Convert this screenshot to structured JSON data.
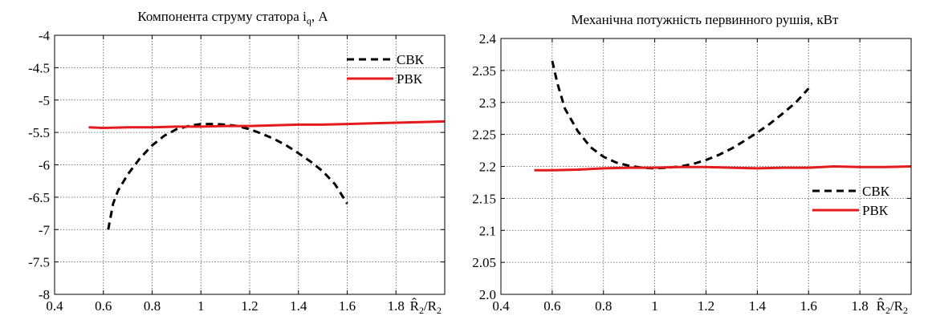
{
  "colors": {
    "svk": "#000000",
    "rvk": "#e41a1c"
  },
  "chart_data": [
    {
      "type": "line",
      "title": "Компонента струму статора i",
      "title_sub": "q",
      "title_suffix": ", А",
      "xlabel": "R̂",
      "xlabel_sub1": "2",
      "xlabel_mid": "/R",
      "xlabel_sub2": "2",
      "xlim": [
        0.4,
        2.0
      ],
      "ylim": [
        -8,
        -4
      ],
      "xticks": [
        0.4,
        0.6,
        0.8,
        1,
        1.2,
        1.4,
        1.6,
        1.8
      ],
      "xtick_labels": [
        "0.4",
        "0.6",
        "0.8",
        "1",
        "1.2",
        "1.4",
        "1.6",
        "1.8"
      ],
      "yticks": [
        -8,
        -7.5,
        -7,
        -6.5,
        -6,
        -5.5,
        -5,
        -4.5,
        -4
      ],
      "ytick_labels": [
        "-8",
        "-7.5",
        "-7",
        "-6.5",
        "-6",
        "-5.5",
        "-5",
        "-4.5",
        "-4"
      ],
      "grid": true,
      "legend_position": "top-right",
      "series": [
        {
          "name": "СВК",
          "style": "dashed",
          "x": [
            0.62,
            0.64,
            0.66,
            0.7,
            0.75,
            0.8,
            0.85,
            0.9,
            0.95,
            1.0,
            1.05,
            1.1,
            1.15,
            1.2,
            1.25,
            1.3,
            1.35,
            1.4,
            1.45,
            1.5,
            1.55,
            1.6
          ],
          "y": [
            -7.0,
            -6.6,
            -6.4,
            -6.15,
            -5.9,
            -5.7,
            -5.55,
            -5.45,
            -5.4,
            -5.37,
            -5.37,
            -5.38,
            -5.4,
            -5.45,
            -5.52,
            -5.6,
            -5.7,
            -5.82,
            -5.95,
            -6.1,
            -6.3,
            -6.6
          ]
        },
        {
          "name": "РВК",
          "style": "solid",
          "x": [
            0.54,
            0.6,
            0.7,
            0.8,
            0.9,
            1.0,
            1.1,
            1.2,
            1.3,
            1.4,
            1.5,
            1.6,
            1.7,
            1.8,
            1.9,
            2.0
          ],
          "y": [
            -5.42,
            -5.43,
            -5.42,
            -5.42,
            -5.41,
            -5.41,
            -5.4,
            -5.4,
            -5.39,
            -5.38,
            -5.38,
            -5.37,
            -5.36,
            -5.35,
            -5.34,
            -5.33
          ]
        }
      ]
    },
    {
      "type": "line",
      "title": "Механічна потужність первинного рушія, кВт",
      "xlabel": "R̂",
      "xlabel_sub1": "2",
      "xlabel_mid": "/R",
      "xlabel_sub2": "2",
      "xlim": [
        0.4,
        2.0
      ],
      "ylim": [
        2.0,
        2.4
      ],
      "xticks": [
        0.4,
        0.6,
        0.8,
        1,
        1.2,
        1.4,
        1.6,
        1.8
      ],
      "xtick_labels": [
        "0.4",
        "0.6",
        "0.8",
        "1",
        "1.2",
        "1.4",
        "1.6",
        "1.8"
      ],
      "yticks": [
        2.0,
        2.05,
        2.1,
        2.15,
        2.2,
        2.25,
        2.3,
        2.35,
        2.4
      ],
      "ytick_labels": [
        "2.0",
        "2.05",
        "2.1",
        "2.15",
        "2.2",
        "2.25",
        "2.3",
        "2.35",
        "2.4"
      ],
      "grid": true,
      "legend_position": "right",
      "series": [
        {
          "name": "СВК",
          "style": "dashed",
          "x": [
            0.6,
            0.62,
            0.65,
            0.7,
            0.75,
            0.8,
            0.85,
            0.9,
            0.95,
            1.0,
            1.05,
            1.1,
            1.15,
            1.2,
            1.25,
            1.3,
            1.35,
            1.4,
            1.45,
            1.5,
            1.55,
            1.6
          ],
          "y": [
            2.365,
            2.33,
            2.29,
            2.255,
            2.23,
            2.215,
            2.206,
            2.201,
            2.198,
            2.197,
            2.198,
            2.2,
            2.204,
            2.21,
            2.218,
            2.228,
            2.24,
            2.253,
            2.267,
            2.283,
            2.3,
            2.322
          ]
        },
        {
          "name": "РВК",
          "style": "solid",
          "x": [
            0.53,
            0.6,
            0.7,
            0.8,
            0.9,
            1.0,
            1.1,
            1.2,
            1.3,
            1.4,
            1.5,
            1.6,
            1.7,
            1.8,
            1.9,
            2.0
          ],
          "y": [
            2.194,
            2.194,
            2.195,
            2.197,
            2.198,
            2.198,
            2.199,
            2.199,
            2.198,
            2.197,
            2.198,
            2.198,
            2.2,
            2.199,
            2.199,
            2.2
          ]
        }
      ]
    }
  ]
}
